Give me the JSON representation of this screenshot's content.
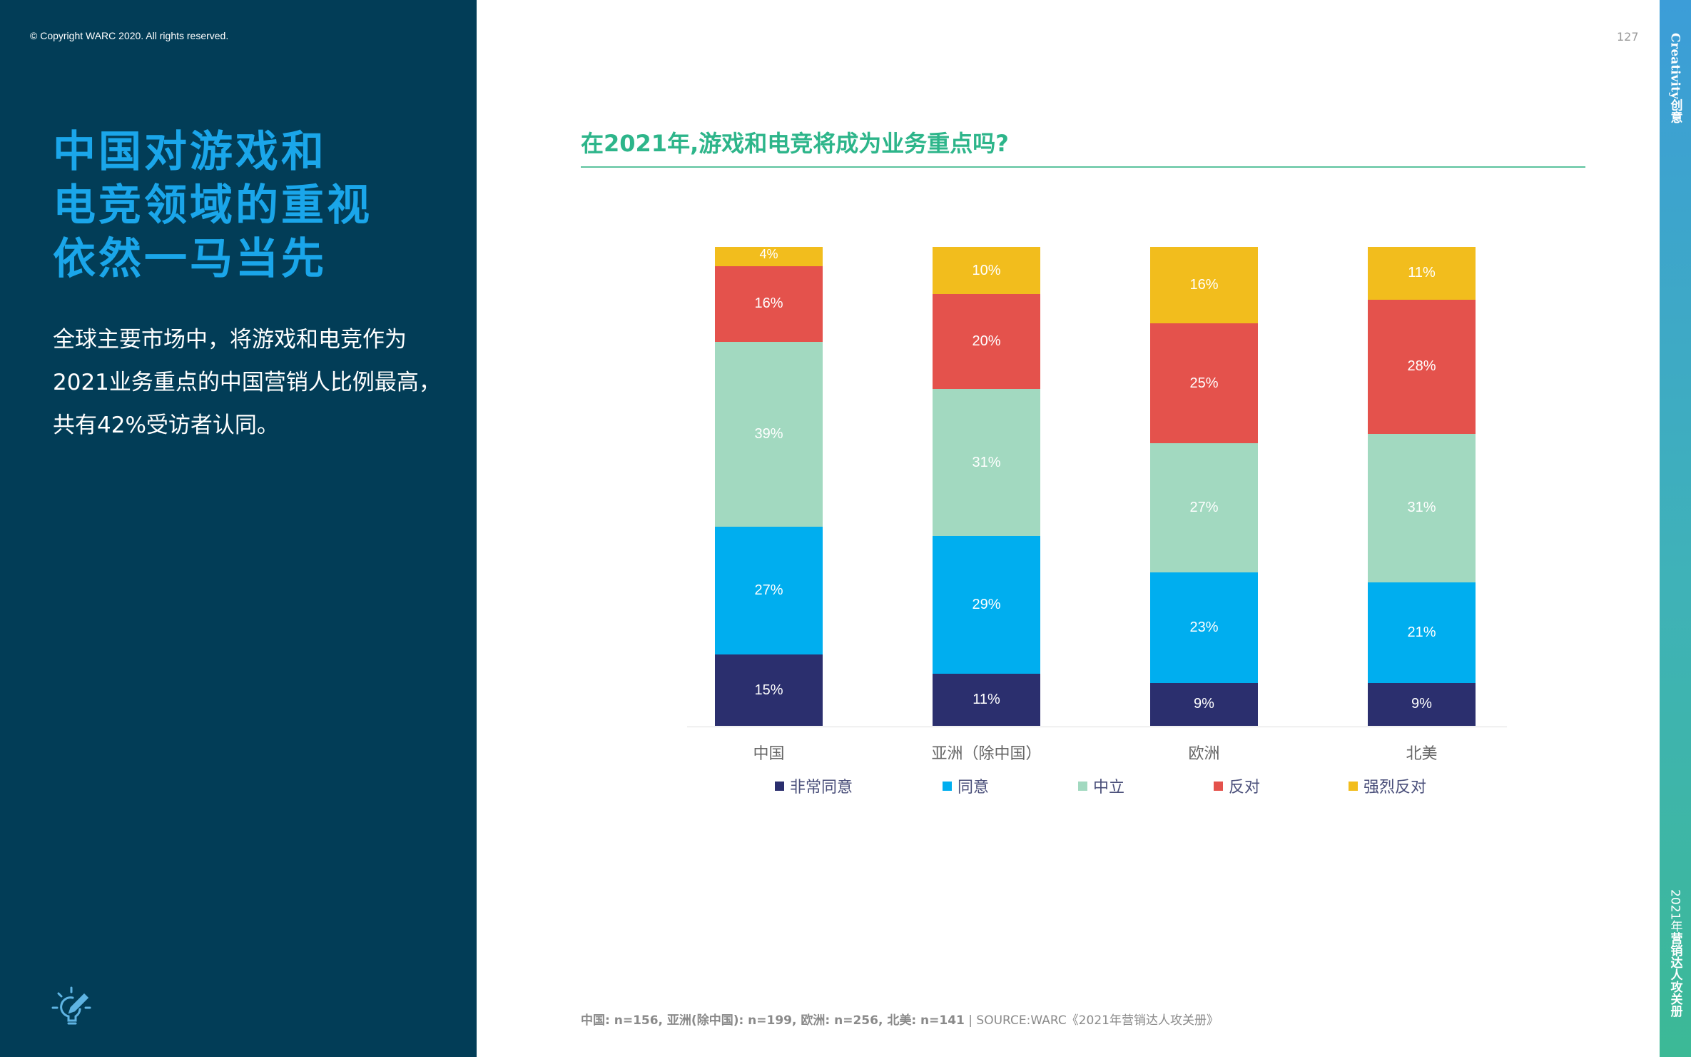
{
  "copyright": "© Copyright WARC 2020. All rights reserved.",
  "heading": [
    "中国对游戏和",
    "电竞领域的重视",
    "依然一马当先"
  ],
  "body_text": "全球主要市场中，将游戏和电竞作为2021业务重点的中国营销人比例最高，共有42%受访者认同。",
  "page_number": "127",
  "side_strip": {
    "top": "Creativity创意",
    "bottom_year": "2021年",
    "bottom_title": "营销达人攻关册"
  },
  "footer": {
    "sample": "中国: n=156, 亚洲(除中国): n=199, 欧洲: n=256, 北美: n=141",
    "separator": "|",
    "source": "SOURCE:WARC《2021年营销达人攻关册》"
  },
  "icon": "lightbulb-pencil-icon",
  "chart_data": {
    "type": "bar",
    "stacked": true,
    "normalized": true,
    "title": "在2021年,游戏和电竞将成为业务重点吗?",
    "categories": [
      "中国",
      "亚洲（除中国）",
      "欧洲",
      "北美"
    ],
    "series": [
      {
        "name": "非常同意",
        "color": "#2b2f6e",
        "values": [
          15,
          11,
          9,
          9
        ]
      },
      {
        "name": "同意",
        "color": "#00aeef",
        "values": [
          27,
          29,
          23,
          21
        ]
      },
      {
        "name": "中立",
        "color": "#a2d9c0",
        "values": [
          39,
          31,
          27,
          31
        ]
      },
      {
        "name": "反对",
        "color": "#e4524c",
        "values": [
          16,
          20,
          25,
          28
        ]
      },
      {
        "name": "强烈反对",
        "color": "#f2bd1d",
        "values": [
          4,
          10,
          16,
          11
        ]
      }
    ],
    "unit": "%",
    "legend": "bottom",
    "grid": false
  }
}
